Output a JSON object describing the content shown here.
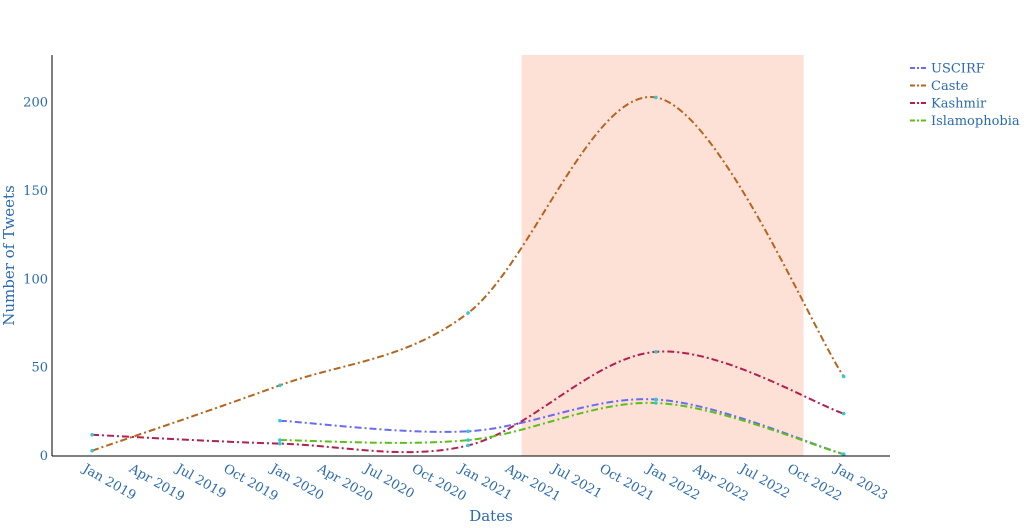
{
  "chart_data": {
    "type": "line",
    "title": "",
    "xlabel": "Dates",
    "ylabel": "Number of Tweets",
    "x_ticks": [
      "Jan 2019",
      "Apr 2019",
      "Jul 2019",
      "Oct 2019",
      "Jan 2020",
      "Apr 2020",
      "Jul 2020",
      "Oct 2020",
      "Jan 2021",
      "Apr 2021",
      "Jul 2021",
      "Oct 2021",
      "Jan 2022",
      "Apr 2022",
      "Jul 2022",
      "Oct 2022",
      "Jan 2023"
    ],
    "y_ticks": [
      "0",
      "50",
      "100",
      "150",
      "200"
    ],
    "ylim": [
      0,
      227
    ],
    "xlim": [
      "2018-10-15",
      "2023-04-01"
    ],
    "highlight_range": [
      "2021-04-15",
      "2022-10-15"
    ],
    "highlight_color": "#fde0d6",
    "legend_position": "top-right",
    "grid": false,
    "series": [
      {
        "name": "USCIRF",
        "color": "#6a6cf0",
        "x": [
          "2020-01-01",
          "2021-01-01",
          "2022-01-01",
          "2023-01-01"
        ],
        "y": [
          20,
          14,
          32,
          1
        ]
      },
      {
        "name": "Caste",
        "color": "#b5651d",
        "x": [
          "2019-01-01",
          "2020-01-01",
          "2021-01-01",
          "2022-01-01",
          "2023-01-01"
        ],
        "y": [
          3,
          40,
          81,
          203,
          45
        ]
      },
      {
        "name": "Kashmir",
        "color": "#b22050",
        "x": [
          "2019-01-01",
          "2020-01-01",
          "2021-01-01",
          "2022-01-01",
          "2023-01-01"
        ],
        "y": [
          12,
          7,
          6,
          59,
          24
        ]
      },
      {
        "name": "Islamophobia",
        "color": "#5cbf1a",
        "x": [
          "2020-01-01",
          "2021-01-01",
          "2022-01-01",
          "2023-01-01"
        ],
        "y": [
          9,
          9,
          30,
          1
        ]
      }
    ]
  }
}
